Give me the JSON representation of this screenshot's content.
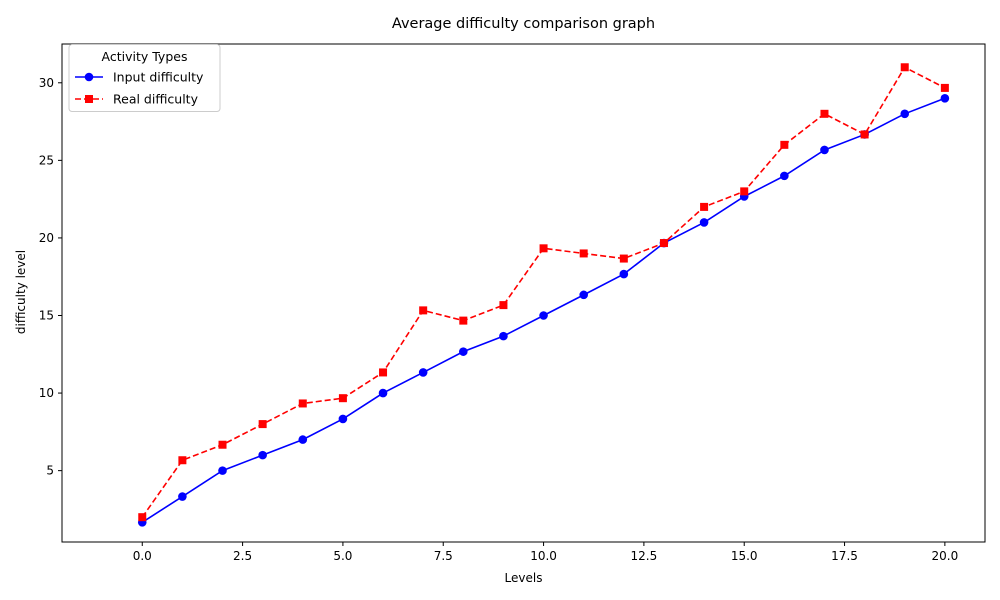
{
  "chart_data": {
    "type": "line",
    "title": "Average difficulty comparison graph",
    "xlabel": "Levels",
    "ylabel": "difficulty level",
    "xlim": [
      -2.0,
      21.0
    ],
    "ylim": [
      0.4,
      32.5
    ],
    "xticks": [
      0.0,
      2.5,
      5.0,
      7.5,
      10.0,
      12.5,
      15.0,
      17.5,
      20.0
    ],
    "xtick_labels": [
      "0.0",
      "2.5",
      "5.0",
      "7.5",
      "10.0",
      "12.5",
      "15.0",
      "17.5",
      "20.0"
    ],
    "yticks": [
      5,
      10,
      15,
      20,
      25,
      30
    ],
    "ytick_labels": [
      "5",
      "10",
      "15",
      "20",
      "25",
      "30"
    ],
    "grid": false,
    "legend": {
      "title": "Activity Types",
      "placement": "top-left"
    },
    "x": [
      0,
      1,
      2,
      3,
      4,
      5,
      6,
      7,
      8,
      9,
      10,
      11,
      12,
      13,
      14,
      15,
      16,
      17,
      18,
      19,
      20
    ],
    "series": [
      {
        "name": "Input difficulty",
        "color": "#0000ff",
        "line_style": "solid",
        "marker": "circle",
        "values": [
          1.67,
          3.33,
          5.0,
          6.0,
          7.0,
          8.33,
          10.0,
          11.33,
          12.67,
          13.67,
          15.0,
          16.33,
          17.67,
          19.67,
          21.0,
          22.67,
          24.0,
          25.67,
          26.67,
          28.0,
          29.0
        ]
      },
      {
        "name": "Real difficulty",
        "color": "#ff0000",
        "line_style": "dashed",
        "marker": "square",
        "values": [
          2.0,
          5.67,
          6.67,
          8.0,
          9.33,
          9.67,
          11.33,
          15.33,
          14.67,
          15.67,
          19.33,
          19.0,
          18.67,
          19.67,
          22.0,
          23.0,
          26.0,
          28.0,
          26.67,
          31.0,
          29.67
        ]
      }
    ]
  }
}
